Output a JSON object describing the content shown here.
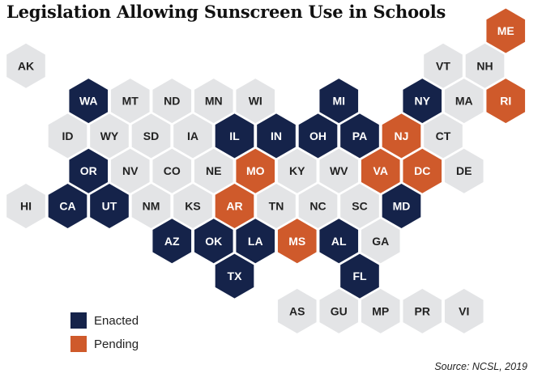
{
  "title": "Legislation Allowing Sunscreen Use in Schools",
  "colors": {
    "enacted": "#15234a",
    "pending": "#cf5a2b",
    "none": "#e3e4e6",
    "text_dark_fill": "#ffffff",
    "text_light_fill": "#222222"
  },
  "legend": {
    "enacted_label": "Enacted",
    "pending_label": "Pending"
  },
  "source": "Source:  NCSL, 2019",
  "states": [
    {
      "abbr": "ME",
      "status": "pending",
      "row": 0,
      "col": 11
    },
    {
      "abbr": "AK",
      "status": "none",
      "row": 1,
      "col": 0
    },
    {
      "abbr": "VT",
      "status": "none",
      "row": 1,
      "col": 10
    },
    {
      "abbr": "NH",
      "status": "none",
      "row": 1,
      "col": 11
    },
    {
      "abbr": "WA",
      "status": "enacted",
      "row": 2,
      "col": 1
    },
    {
      "abbr": "MT",
      "status": "none",
      "row": 2,
      "col": 2
    },
    {
      "abbr": "ND",
      "status": "none",
      "row": 2,
      "col": 3
    },
    {
      "abbr": "MN",
      "status": "none",
      "row": 2,
      "col": 4
    },
    {
      "abbr": "WI",
      "status": "none",
      "row": 2,
      "col": 5
    },
    {
      "abbr": "MI",
      "status": "enacted",
      "row": 2,
      "col": 7
    },
    {
      "abbr": "NY",
      "status": "enacted",
      "row": 2,
      "col": 9
    },
    {
      "abbr": "MA",
      "status": "none",
      "row": 2,
      "col": 10
    },
    {
      "abbr": "RI",
      "status": "pending",
      "row": 2,
      "col": 11
    },
    {
      "abbr": "ID",
      "status": "none",
      "row": 3,
      "col": 1
    },
    {
      "abbr": "WY",
      "status": "none",
      "row": 3,
      "col": 2
    },
    {
      "abbr": "SD",
      "status": "none",
      "row": 3,
      "col": 3
    },
    {
      "abbr": "IA",
      "status": "none",
      "row": 3,
      "col": 4
    },
    {
      "abbr": "IL",
      "status": "enacted",
      "row": 3,
      "col": 5
    },
    {
      "abbr": "IN",
      "status": "enacted",
      "row": 3,
      "col": 6
    },
    {
      "abbr": "OH",
      "status": "enacted",
      "row": 3,
      "col": 7
    },
    {
      "abbr": "PA",
      "status": "enacted",
      "row": 3,
      "col": 8
    },
    {
      "abbr": "NJ",
      "status": "pending",
      "row": 3,
      "col": 9
    },
    {
      "abbr": "CT",
      "status": "none",
      "row": 3,
      "col": 10
    },
    {
      "abbr": "OR",
      "status": "enacted",
      "row": 4,
      "col": 1
    },
    {
      "abbr": "NV",
      "status": "none",
      "row": 4,
      "col": 2
    },
    {
      "abbr": "CO",
      "status": "none",
      "row": 4,
      "col": 3
    },
    {
      "abbr": "NE",
      "status": "none",
      "row": 4,
      "col": 4
    },
    {
      "abbr": "MO",
      "status": "pending",
      "row": 4,
      "col": 5
    },
    {
      "abbr": "KY",
      "status": "none",
      "row": 4,
      "col": 6
    },
    {
      "abbr": "WV",
      "status": "none",
      "row": 4,
      "col": 7
    },
    {
      "abbr": "VA",
      "status": "pending",
      "row": 4,
      "col": 8
    },
    {
      "abbr": "DC",
      "status": "pending",
      "row": 4,
      "col": 9
    },
    {
      "abbr": "DE",
      "status": "none",
      "row": 4,
      "col": 10
    },
    {
      "abbr": "HI",
      "status": "none",
      "row": 5,
      "col": 0
    },
    {
      "abbr": "CA",
      "status": "enacted",
      "row": 5,
      "col": 1
    },
    {
      "abbr": "UT",
      "status": "enacted",
      "row": 5,
      "col": 2
    },
    {
      "abbr": "NM",
      "status": "none",
      "row": 5,
      "col": 3
    },
    {
      "abbr": "KS",
      "status": "none",
      "row": 5,
      "col": 4
    },
    {
      "abbr": "AR",
      "status": "pending",
      "row": 5,
      "col": 5
    },
    {
      "abbr": "TN",
      "status": "none",
      "row": 5,
      "col": 6
    },
    {
      "abbr": "NC",
      "status": "none",
      "row": 5,
      "col": 7
    },
    {
      "abbr": "SC",
      "status": "none",
      "row": 5,
      "col": 8
    },
    {
      "abbr": "MD",
      "status": "enacted",
      "row": 5,
      "col": 9
    },
    {
      "abbr": "AZ",
      "status": "enacted",
      "row": 6,
      "col": 3
    },
    {
      "abbr": "OK",
      "status": "enacted",
      "row": 6,
      "col": 4
    },
    {
      "abbr": "LA",
      "status": "enacted",
      "row": 6,
      "col": 5
    },
    {
      "abbr": "MS",
      "status": "pending",
      "row": 6,
      "col": 6
    },
    {
      "abbr": "AL",
      "status": "enacted",
      "row": 6,
      "col": 7
    },
    {
      "abbr": "GA",
      "status": "none",
      "row": 6,
      "col": 8
    },
    {
      "abbr": "TX",
      "status": "enacted",
      "row": 7,
      "col": 5
    },
    {
      "abbr": "FL",
      "status": "enacted",
      "row": 7,
      "col": 8
    },
    {
      "abbr": "AS",
      "status": "none",
      "row": 8,
      "col": 6
    },
    {
      "abbr": "GU",
      "status": "none",
      "row": 8,
      "col": 7
    },
    {
      "abbr": "MP",
      "status": "none",
      "row": 8,
      "col": 8
    },
    {
      "abbr": "PR",
      "status": "none",
      "row": 8,
      "col": 9
    },
    {
      "abbr": "VI",
      "status": "none",
      "row": 8,
      "col": 10
    }
  ]
}
